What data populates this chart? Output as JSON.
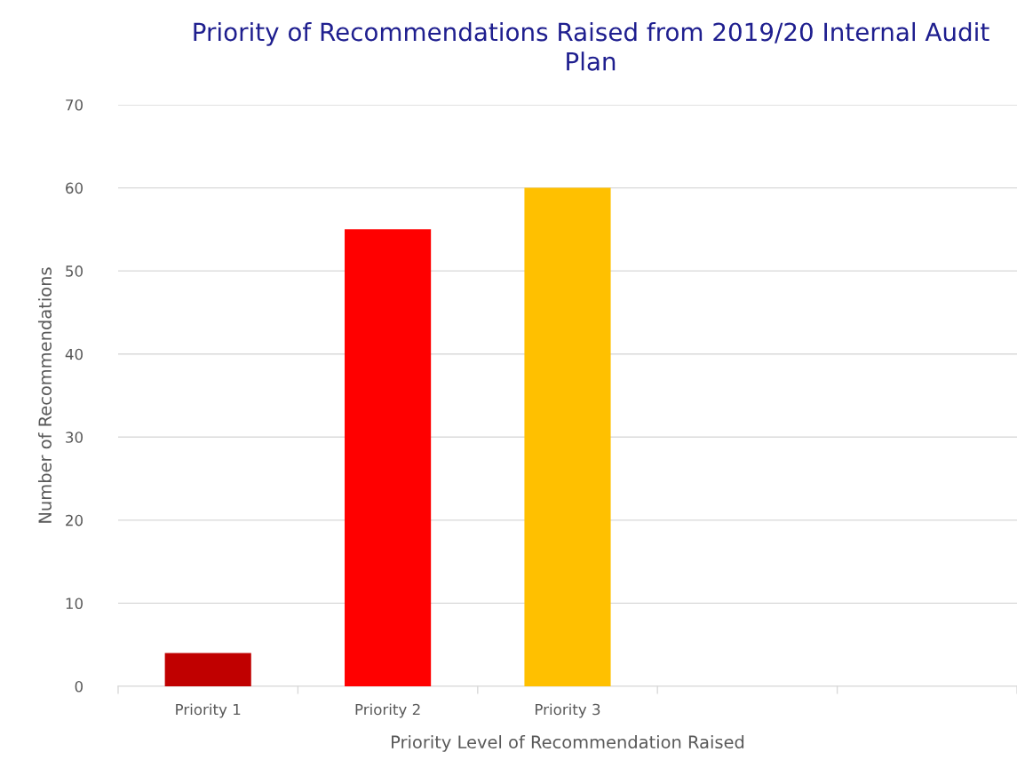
{
  "chart_data": {
    "type": "bar",
    "title": "Priority of Recommendations Raised from 2019/20 Internal Audit Plan",
    "xlabel": "Priority Level of Recommendation Raised",
    "ylabel": "Number of Recommendations",
    "categories": [
      "Priority 1",
      "Priority 2",
      "Priority 3",
      null,
      null
    ],
    "values": [
      4,
      55,
      60,
      null,
      null
    ],
    "colors": [
      "#c00000",
      "#ff0000",
      "#ffc000",
      "#ffc000",
      "#ffc000"
    ],
    "ylim": [
      0,
      70
    ],
    "yticks": [
      0,
      10,
      20,
      30,
      40,
      50,
      60,
      70
    ],
    "grid": "y",
    "legend": false
  }
}
